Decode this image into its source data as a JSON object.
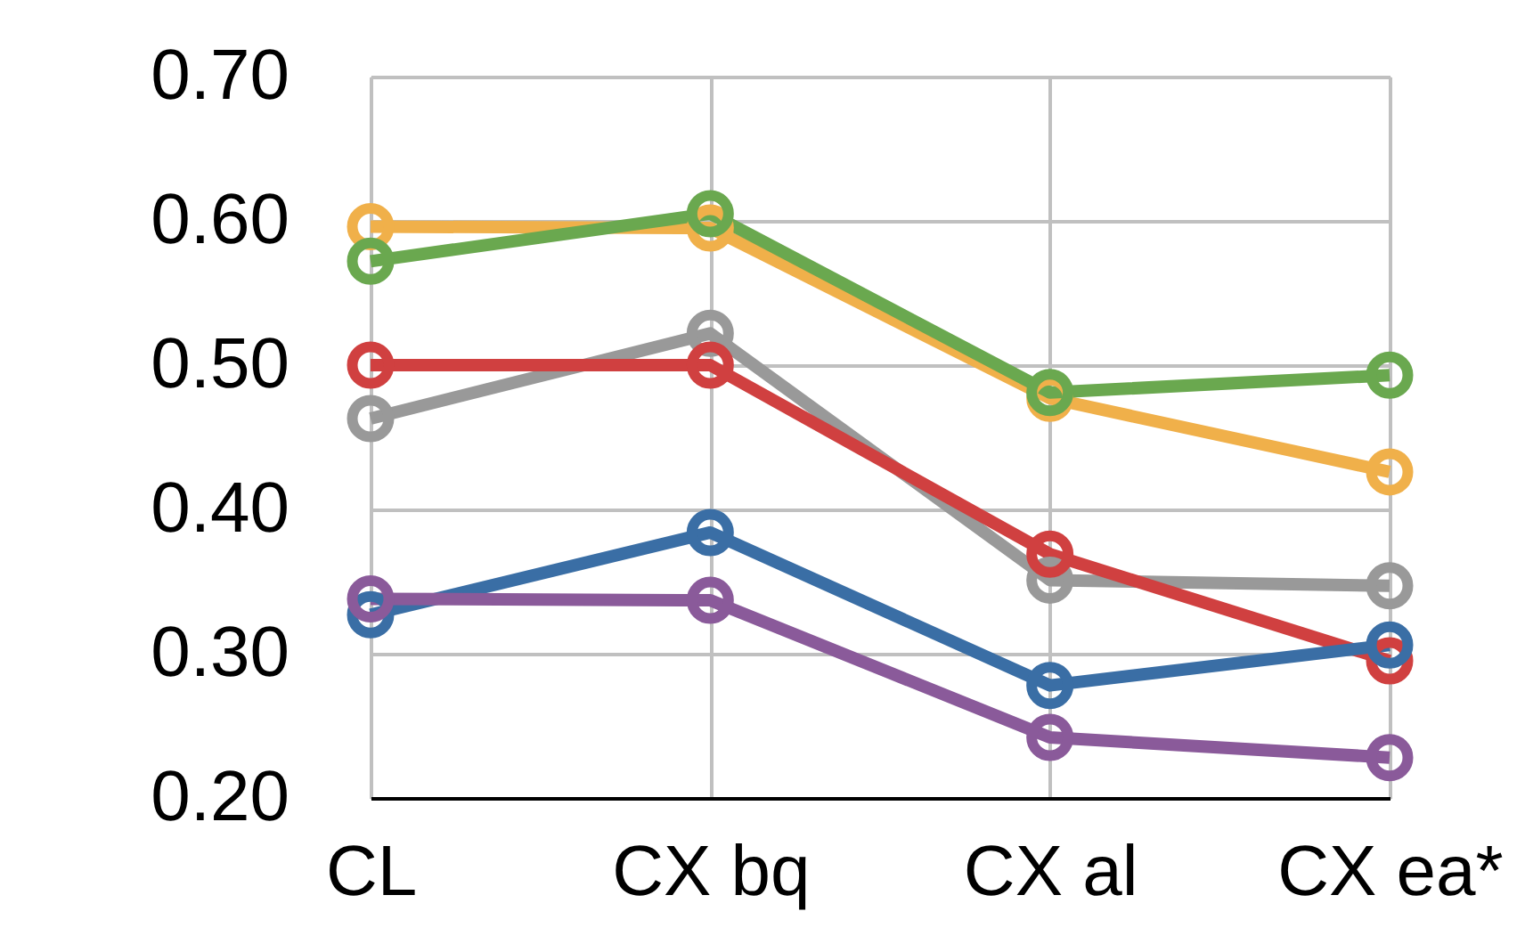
{
  "chart_data": {
    "type": "line",
    "categories": [
      "CL",
      "CX bq",
      "CX al",
      "CX ea*"
    ],
    "series": [
      {
        "color": "#f0b04a",
        "values": [
          0.596,
          0.595,
          0.477,
          0.426
        ]
      },
      {
        "color": "#6aa84f",
        "values": [
          0.572,
          0.605,
          0.481,
          0.493
        ]
      },
      {
        "color": "#999999",
        "values": [
          0.463,
          0.522,
          0.351,
          0.347
        ]
      },
      {
        "color": "#d04040",
        "values": [
          0.5,
          0.5,
          0.369,
          0.295
        ]
      },
      {
        "color": "#3a6ea5",
        "values": [
          0.327,
          0.384,
          0.278,
          0.306
        ]
      },
      {
        "color": "#8a5a9a",
        "values": [
          0.338,
          0.337,
          0.242,
          0.228
        ]
      }
    ],
    "ylim": [
      0.2,
      0.7
    ],
    "yticks": [
      {
        "value": 0.2,
        "label": "0.20"
      },
      {
        "value": 0.3,
        "label": "0.30"
      },
      {
        "value": 0.4,
        "label": "0.40"
      },
      {
        "value": 0.5,
        "label": "0.50"
      },
      {
        "value": 0.6,
        "label": "0.60"
      },
      {
        "value": 0.7,
        "label": "0.70"
      }
    ],
    "grid": true,
    "marker": "circle",
    "line_style": "solid",
    "legend": false
  }
}
